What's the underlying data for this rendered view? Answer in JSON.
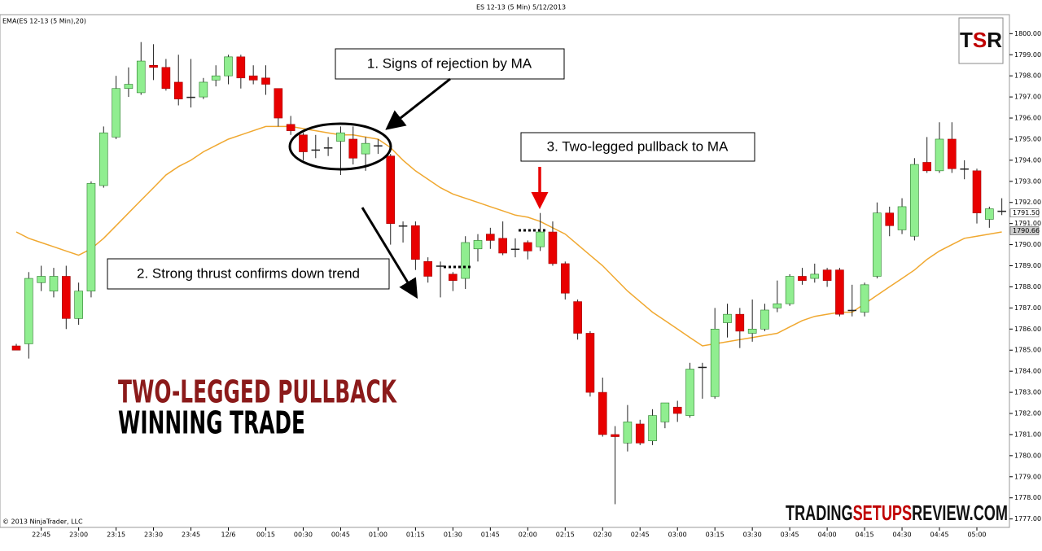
{
  "chart_data": {
    "type": "candlestick",
    "title": "ES 12-13 (5 Min)  5/12/2013",
    "indicator_label": "EMA(ES 12-13 (5 Min),20)",
    "copyright": "© 2013 NinjaTrader, LLC",
    "annotations": [
      "1. Signs of rejection by MA",
      "2. Strong thrust confirms down trend",
      "3. Two-legged  pullback to MA"
    ],
    "headline": [
      "TWO-LEGGED PULLBACK",
      "WINNING TRADE"
    ],
    "logo": [
      "T",
      "S",
      "R"
    ],
    "site": [
      "TRADING",
      "SETUPS",
      "REVIEW.COM"
    ],
    "up_color": "#90ee90",
    "down_color": "#e80000",
    "categories": [
      null,
      null,
      "22:45",
      null,
      null,
      "23:00",
      null,
      null,
      "23:15",
      null,
      null,
      "23:30",
      null,
      null,
      "23:45",
      null,
      null,
      "12/6",
      null,
      null,
      "00:15",
      null,
      null,
      "00:30",
      null,
      null,
      "00:45",
      null,
      null,
      "01:00",
      null,
      null,
      "01:15",
      null,
      null,
      "01:30",
      null,
      null,
      "01:45",
      null,
      null,
      "02:00",
      null,
      null,
      "02:15",
      null,
      null,
      "02:30",
      null,
      null,
      "02:45",
      null,
      null,
      "03:00",
      null,
      null,
      "03:15",
      null,
      null,
      "03:30",
      null,
      null,
      "03:45",
      null,
      null,
      "04:00",
      null,
      null,
      "04:15",
      null,
      null,
      "04:30",
      null,
      null,
      "04:45",
      null,
      null,
      "05:00",
      null,
      null
    ],
    "open": [
      1785.2,
      1785.3,
      1788.2,
      1787.8,
      1788.5,
      1786.5,
      1787.8,
      1792.8,
      1795.1,
      1797.4,
      1797.2,
      1798.5,
      1798.4,
      1797.7,
      1797.0,
      1797.0,
      1797.8,
      1798.0,
      1798.9,
      1798.0,
      1797.9,
      1797.4,
      1795.7,
      1795.2,
      1794.5,
      1794.6,
      1794.9,
      1795.0,
      1794.3,
      1794.7,
      1794.2,
      1790.9,
      1790.9,
      1789.2,
      1789.0,
      1788.6,
      1788.4,
      1789.8,
      1790.5,
      1790.3,
      1789.8,
      1790.1,
      1789.9,
      1790.6,
      1789.1,
      1787.3,
      1785.8,
      1783.0,
      1781.0,
      1780.6,
      1781.5,
      1780.7,
      1781.6,
      1782.3,
      1781.9,
      1784.2,
      1782.8,
      1786.3,
      1786.7,
      1785.8,
      1786.0,
      1787.0,
      1787.2,
      1788.5,
      1788.4,
      1788.8,
      1788.8,
      1786.9,
      1786.8,
      1788.5,
      1791.5,
      1790.7,
      1790.4,
      1793.9,
      1793.5,
      1795.0,
      1793.6,
      1793.5,
      1791.2,
      1791.6
    ],
    "high": [
      1785.3,
      1788.7,
      1789.0,
      1788.9,
      1789.0,
      1788.2,
      1793.0,
      1795.6,
      1798.0,
      1798.4,
      1799.6,
      1799.5,
      1798.8,
      1799.0,
      1798.8,
      1797.9,
      1798.5,
      1799.0,
      1799.0,
      1798.5,
      1798.5,
      1797.4,
      1796.1,
      1795.3,
      1795.2,
      1795.1,
      1795.6,
      1795.6,
      1795.1,
      1795.0,
      1794.3,
      1791.1,
      1791.1,
      1789.4,
      1789.2,
      1788.7,
      1790.4,
      1790.5,
      1790.8,
      1791.1,
      1790.3,
      1790.2,
      1791.5,
      1791.1,
      1789.2,
      1787.4,
      1785.9,
      1783.7,
      1781.4,
      1782.4,
      1781.7,
      1782.2,
      1782.5,
      1782.6,
      1784.4,
      1784.4,
      1787.0,
      1787.2,
      1787.0,
      1787.4,
      1787.2,
      1788.3,
      1788.6,
      1788.9,
      1789.1,
      1788.9,
      1788.9,
      1788.1,
      1788.2,
      1792.0,
      1791.8,
      1792.2,
      1794.1,
      1795.1,
      1795.8,
      1795.8,
      1794.0,
      1793.6,
      1791.8,
      1792.2
    ],
    "low": [
      1785.0,
      1784.6,
      1787.8,
      1787.5,
      1786.0,
      1786.2,
      1787.5,
      1792.7,
      1795.0,
      1797.0,
      1797.1,
      1797.8,
      1797.3,
      1796.6,
      1796.5,
      1796.9,
      1797.5,
      1797.6,
      1797.4,
      1797.6,
      1797.1,
      1795.6,
      1795.2,
      1794.0,
      1794.1,
      1794.2,
      1793.3,
      1793.8,
      1793.5,
      1794.3,
      1790.0,
      1790.1,
      1788.8,
      1788.2,
      1787.5,
      1787.8,
      1787.9,
      1789.2,
      1789.8,
      1789.5,
      1789.4,
      1789.3,
      1789.7,
      1789.0,
      1787.4,
      1785.5,
      1782.8,
      1780.9,
      1777.7,
      1780.2,
      1780.5,
      1780.5,
      1781.3,
      1781.6,
      1781.8,
      1782.7,
      1782.7,
      1785.6,
      1785.1,
      1785.4,
      1785.9,
      1786.8,
      1787.1,
      1788.1,
      1788.2,
      1788.0,
      1786.6,
      1786.6,
      1786.6,
      1788.4,
      1790.4,
      1790.5,
      1790.2,
      1793.4,
      1793.4,
      1793.4,
      1793.1,
      1791.0,
      1790.8,
      1791.4
    ],
    "close": [
      1785.0,
      1788.4,
      1788.5,
      1788.5,
      1786.5,
      1787.8,
      1792.9,
      1795.3,
      1797.4,
      1797.6,
      1798.7,
      1798.4,
      1797.4,
      1796.9,
      1797.0,
      1797.7,
      1798.0,
      1798.9,
      1797.9,
      1797.8,
      1797.6,
      1796.0,
      1795.4,
      1794.4,
      1794.5,
      1794.6,
      1795.3,
      1794.1,
      1794.8,
      1794.7,
      1791.0,
      1790.9,
      1789.3,
      1788.5,
      1789.0,
      1788.3,
      1790.1,
      1790.2,
      1790.2,
      1789.6,
      1789.8,
      1789.7,
      1790.6,
      1789.1,
      1787.7,
      1785.8,
      1783.0,
      1781.0,
      1780.9,
      1781.6,
      1780.6,
      1781.9,
      1782.5,
      1782.0,
      1784.1,
      1784.2,
      1786.0,
      1786.7,
      1785.9,
      1786.0,
      1786.9,
      1787.2,
      1788.5,
      1788.3,
      1788.6,
      1788.3,
      1786.7,
      1786.9,
      1788.1,
      1791.5,
      1790.9,
      1791.8,
      1793.8,
      1793.5,
      1795.0,
      1793.6,
      1793.6,
      1791.5,
      1791.7,
      1791.6
    ],
    "ema": {
      "color": "#f0a830",
      "values": [
        1790.6,
        1790.3,
        1790.1,
        1789.9,
        1789.7,
        1789.5,
        1789.8,
        1790.3,
        1790.9,
        1791.5,
        1792.1,
        1792.7,
        1793.3,
        1793.7,
        1794.0,
        1794.4,
        1794.7,
        1795.0,
        1795.2,
        1795.4,
        1795.6,
        1795.6,
        1795.6,
        1795.5,
        1795.4,
        1795.3,
        1795.2,
        1795.2,
        1795.1,
        1795.0,
        1794.6,
        1794.0,
        1793.5,
        1793.1,
        1792.7,
        1792.4,
        1792.2,
        1792.0,
        1791.8,
        1791.6,
        1791.4,
        1791.3,
        1791.1,
        1790.8,
        1790.5,
        1790.0,
        1789.5,
        1789.0,
        1788.4,
        1787.8,
        1787.3,
        1786.8,
        1786.4,
        1786.0,
        1785.6,
        1785.2,
        1785.3,
        1785.4,
        1785.5,
        1785.6,
        1785.7,
        1785.8,
        1786.1,
        1786.4,
        1786.6,
        1786.7,
        1786.8,
        1786.8,
        1787.2,
        1787.6,
        1788.0,
        1788.4,
        1788.8,
        1789.3,
        1789.7,
        1790.0,
        1790.3,
        1790.4,
        1790.5,
        1790.6
      ]
    },
    "price_markers": [
      {
        "value": 1791.5,
        "label": "1791.50"
      },
      {
        "value": 1790.66,
        "label": "1790.66"
      }
    ],
    "ylim": [
      1776.6,
      1800.9
    ],
    "yticks": [
      {
        "value": 1777,
        "label": "1777.00"
      },
      {
        "value": 1778,
        "label": "1778.00"
      },
      {
        "value": 1779,
        "label": "1779.00"
      },
      {
        "value": 1780,
        "label": "1780.00"
      },
      {
        "value": 1781,
        "label": "1781.00"
      },
      {
        "value": 1782,
        "label": "1782.00"
      },
      {
        "value": 1783,
        "label": "1783.00"
      },
      {
        "value": 1784,
        "label": "1784.00"
      },
      {
        "value": 1785,
        "label": "1785.00"
      },
      {
        "value": 1786,
        "label": "1786.00"
      },
      {
        "value": 1787,
        "label": "1787.00"
      },
      {
        "value": 1788,
        "label": "1788.00"
      },
      {
        "value": 1789,
        "label": "1789.00"
      },
      {
        "value": 1790,
        "label": "1790.00"
      },
      {
        "value": 1791,
        "label": "1791.00"
      },
      {
        "value": 1792,
        "label": "1792.00"
      },
      {
        "value": 1793,
        "label": "1793.00"
      },
      {
        "value": 1794,
        "label": "1794.00"
      },
      {
        "value": 1795,
        "label": "1795.00"
      },
      {
        "value": 1796,
        "label": "1796.00"
      },
      {
        "value": 1797,
        "label": "1797.00"
      },
      {
        "value": 1798,
        "label": "1798.00"
      },
      {
        "value": 1799,
        "label": "1799.00"
      },
      {
        "value": 1800,
        "label": "1800.00"
      }
    ]
  }
}
